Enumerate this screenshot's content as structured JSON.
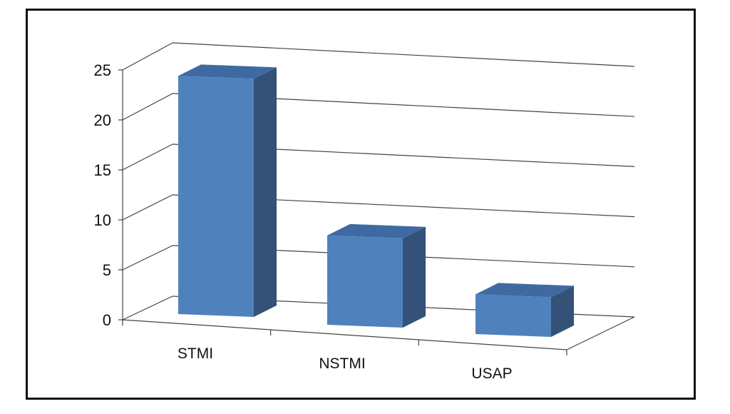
{
  "chart_data": {
    "type": "bar",
    "categories": [
      "STMI",
      "NSTMI",
      "USAP"
    ],
    "values": [
      24,
      9,
      4
    ],
    "title": "",
    "xlabel": "",
    "ylabel": "",
    "ylim": [
      0,
      25
    ],
    "yticks": [
      "0",
      "5",
      "10",
      "15",
      "20",
      "25"
    ],
    "grid": true,
    "legend": "none",
    "style": "3d-column",
    "colors": {
      "front": "#4f81bd",
      "side": "#345178",
      "top": "#3f6aa1",
      "grid": "#444444"
    }
  }
}
